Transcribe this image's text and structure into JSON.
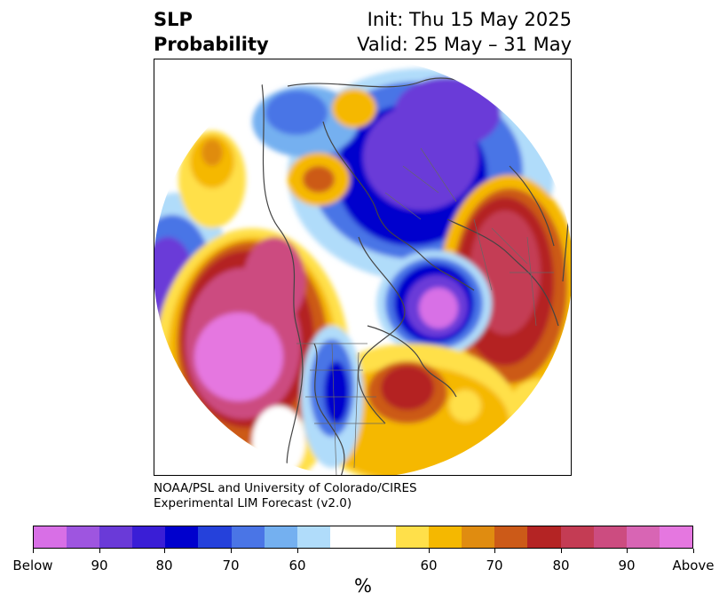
{
  "title": {
    "left_line1": "SLP",
    "left_line2": "Probability",
    "right_line1": "Init: Thu 15 May 2025",
    "right_line2": "Valid: 25 May – 31 May"
  },
  "credit": {
    "line1": "NOAA/PSL and University of Colorado/CIRES",
    "line2": "Experimental LIM Forecast (v2.0)"
  },
  "colorbar": {
    "unit": "%",
    "colors": [
      "#d86fe6",
      "#9e55e0",
      "#6a3ad8",
      "#3a1ed6",
      "#0000cd",
      "#2541db",
      "#4a75e6",
      "#74b0f0",
      "#b0dcfa",
      "#ffffff",
      "#ffe04a",
      "#f5b800",
      "#e08c10",
      "#cc5a18",
      "#b42424",
      "#c43c54",
      "#cc4c80",
      "#d865b4",
      "#e577e0"
    ],
    "tick_labels": [
      "Below",
      "90",
      "80",
      "70",
      "60",
      "60",
      "70",
      "80",
      "90",
      "Above"
    ]
  }
}
